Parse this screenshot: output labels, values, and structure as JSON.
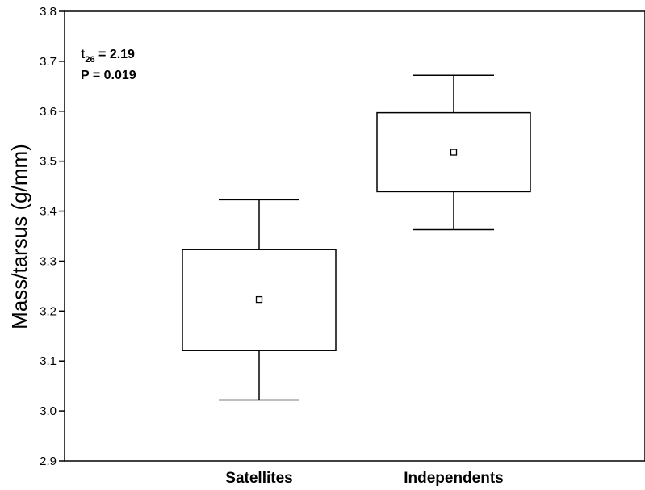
{
  "chart_data": {
    "type": "box",
    "title": "",
    "xlabel": "",
    "ylabel": "Mass/tarsus (g/mm)",
    "ylim": [
      2.9,
      3.8
    ],
    "yticks": [
      "2.9",
      "3.0",
      "3.1",
      "3.2",
      "3.3",
      "3.4",
      "3.5",
      "3.6",
      "3.7",
      "3.8"
    ],
    "categories": [
      "Satellites",
      "Independents"
    ],
    "boxes": [
      {
        "category": "Satellites",
        "mean": 3.223,
        "box_low": 3.121,
        "box_high": 3.323,
        "whisker_low": 3.022,
        "whisker_high": 3.423
      },
      {
        "category": "Independents",
        "mean": 3.518,
        "box_low": 3.439,
        "box_high": 3.597,
        "whisker_low": 3.363,
        "whisker_high": 3.672
      }
    ],
    "grid": false,
    "annotation": {
      "t_label": "t",
      "t_subscript": "26",
      "t_value": " = 2.19",
      "p_text": "P = 0.019"
    }
  }
}
